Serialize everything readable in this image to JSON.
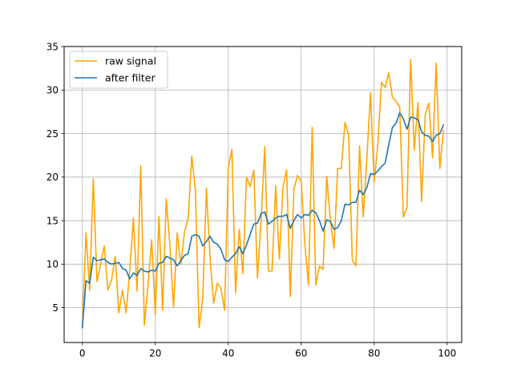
{
  "chart_data": {
    "type": "line",
    "title": "",
    "xlabel": "",
    "ylabel": "",
    "xlim": [
      -5,
      104
    ],
    "ylim": [
      1,
      35
    ],
    "x_ticks": [
      0,
      20,
      40,
      60,
      80,
      100
    ],
    "y_ticks": [
      5,
      10,
      15,
      20,
      25,
      30,
      35
    ],
    "grid": true,
    "legend_position": "top-left",
    "series": [
      {
        "name": "raw signal",
        "color": "#FFA500",
        "x": [
          0,
          1,
          2,
          3,
          4,
          5,
          6,
          7,
          8,
          9,
          10,
          11,
          12,
          13,
          14,
          15,
          16,
          17,
          18,
          19,
          20,
          21,
          22,
          23,
          24,
          25,
          26,
          27,
          28,
          29,
          30,
          31,
          32,
          33,
          34,
          35,
          36,
          37,
          38,
          39,
          40,
          41,
          42,
          43,
          44,
          45,
          46,
          47,
          48,
          49,
          50,
          51,
          52,
          53,
          54,
          55,
          56,
          57,
          58,
          59,
          60,
          61,
          62,
          63,
          64,
          65,
          66,
          67,
          68,
          69,
          70,
          71,
          72,
          73,
          74,
          75,
          76,
          77,
          78,
          79,
          80,
          81,
          82,
          83,
          84,
          85,
          86,
          87,
          88,
          89,
          90,
          91,
          92,
          93,
          94,
          95,
          96,
          97,
          98,
          99
        ],
        "values": [
          2.7,
          13.6,
          7.0,
          19.8,
          8.0,
          10.0,
          12.1,
          7.0,
          8.2,
          10.9,
          4.4,
          7.0,
          4.4,
          9.4,
          15.3,
          6.9,
          21.3,
          3.0,
          7.6,
          12.8,
          4.2,
          15.5,
          4.7,
          17.5,
          12.2,
          5.0,
          13.6,
          10.0,
          13.7,
          15.2,
          22.4,
          18.4,
          2.7,
          6.0,
          18.7,
          10.8,
          5.5,
          7.8,
          7.2,
          4.7,
          21.0,
          23.2,
          6.7,
          14.0,
          8.9,
          20.0,
          18.9,
          20.8,
          8.4,
          15.0,
          23.5,
          9.2,
          9.2,
          19.0,
          10.6,
          18.9,
          20.8,
          6.3,
          18.6,
          20.2,
          19.5,
          12.3,
          7.6,
          25.7,
          7.6,
          9.8,
          9.4,
          20.1,
          15.0,
          11.8,
          21.0,
          21.0,
          26.3,
          24.8,
          10.5,
          9.8,
          23.6,
          15.4,
          22.2,
          29.7,
          19.4,
          23.7,
          30.9,
          30.3,
          32.0,
          29.2,
          28.7,
          28.1,
          15.4,
          16.5,
          33.5,
          23.1,
          28.6,
          17.2,
          27.2,
          28.5,
          22.2,
          33.1,
          21.0,
          25.4
        ]
      },
      {
        "name": "after filter",
        "color": "#1F77B4",
        "x": [
          0,
          1,
          2,
          3,
          4,
          5,
          6,
          7,
          8,
          9,
          10,
          11,
          12,
          13,
          14,
          15,
          16,
          17,
          18,
          19,
          20,
          21,
          22,
          23,
          24,
          25,
          26,
          27,
          28,
          29,
          30,
          31,
          32,
          33,
          34,
          35,
          36,
          37,
          38,
          39,
          40,
          41,
          42,
          43,
          44,
          45,
          46,
          47,
          48,
          49,
          50,
          51,
          52,
          53,
          54,
          55,
          56,
          57,
          58,
          59,
          60,
          61,
          62,
          63,
          64,
          65,
          66,
          67,
          68,
          69,
          70,
          71,
          72,
          73,
          74,
          75,
          76,
          77,
          78,
          79,
          80,
          81,
          82,
          83,
          84,
          85,
          86,
          87,
          88,
          89,
          90,
          91,
          92,
          93,
          94,
          95,
          96,
          97,
          98,
          99
        ],
        "values": [
          2.7,
          8.1,
          7.8,
          10.8,
          10.4,
          10.5,
          10.6,
          10.2,
          10.0,
          10.1,
          10.2,
          9.5,
          9.3,
          8.3,
          9.0,
          8.7,
          9.5,
          9.2,
          9.1,
          9.3,
          9.2,
          10.1,
          10.2,
          10.9,
          10.7,
          10.5,
          9.8,
          10.4,
          11.0,
          11.2,
          13.2,
          13.4,
          13.2,
          12.1,
          12.6,
          13.2,
          12.5,
          12.3,
          11.7,
          10.5,
          10.3,
          10.8,
          11.2,
          12.0,
          11.2,
          12.2,
          13.4,
          14.6,
          14.7,
          15.8,
          16.0,
          14.6,
          14.9,
          15.3,
          15.5,
          15.5,
          15.7,
          14.1,
          15.0,
          15.7,
          15.3,
          15.7,
          15.6,
          16.2,
          15.9,
          15.0,
          13.8,
          15.1,
          14.9,
          14.0,
          14.2,
          15.0,
          16.9,
          16.8,
          17.1,
          17.1,
          18.5,
          18.0,
          18.8,
          20.4,
          20.3,
          20.7,
          21.2,
          21.6,
          23.7,
          25.7,
          26.2,
          27.4,
          26.7,
          25.5,
          26.9,
          26.8,
          26.6,
          25.2,
          24.8,
          24.7,
          24.1,
          24.8,
          25.0,
          26.0
        ]
      }
    ]
  }
}
